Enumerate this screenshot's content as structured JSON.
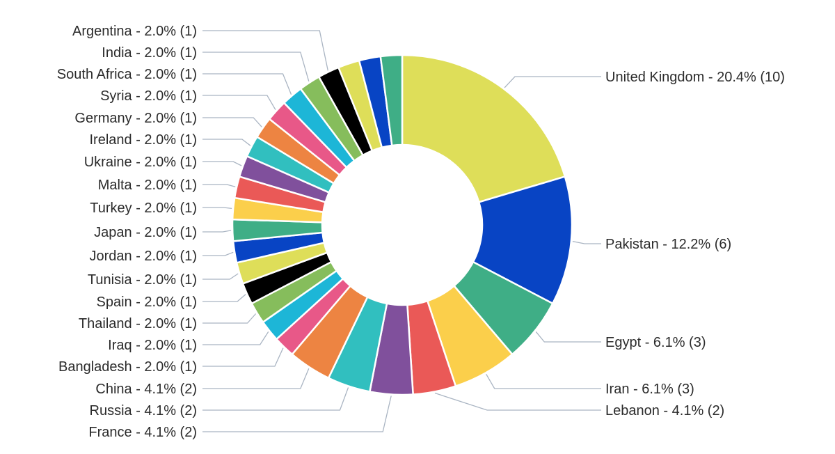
{
  "chart_data": {
    "type": "pie",
    "variant": "donut",
    "title": "",
    "slices": [
      {
        "label": "United Kingdom - 20.4% (10)",
        "name": "United Kingdom",
        "percent": 20.4,
        "count": 10,
        "color": "#dede59"
      },
      {
        "label": "Pakistan - 12.2% (6)",
        "name": "Pakistan",
        "percent": 12.2,
        "count": 6,
        "color": "#0844c4"
      },
      {
        "label": "Egypt - 6.1% (3)",
        "name": "Egypt",
        "percent": 6.1,
        "count": 3,
        "color": "#3fae86"
      },
      {
        "label": "Iran - 6.1% (3)",
        "name": "Iran",
        "percent": 6.1,
        "count": 3,
        "color": "#fbcf4b"
      },
      {
        "label": "Lebanon - 4.1% (2)",
        "name": "Lebanon",
        "percent": 4.1,
        "count": 2,
        "color": "#ea5957"
      },
      {
        "label": "France - 4.1% (2)",
        "name": "France",
        "percent": 4.1,
        "count": 2,
        "color": "#80509c"
      },
      {
        "label": "Russia - 4.1% (2)",
        "name": "Russia",
        "percent": 4.1,
        "count": 2,
        "color": "#31bfbf"
      },
      {
        "label": "China - 4.1% (2)",
        "name": "China",
        "percent": 4.1,
        "count": 2,
        "color": "#ed8442"
      },
      {
        "label": "Bangladesh - 2.0% (1)",
        "name": "Bangladesh",
        "percent": 2.0,
        "count": 1,
        "color": "#e85888"
      },
      {
        "label": "Iraq - 2.0% (1)",
        "name": "Iraq",
        "percent": 2.0,
        "count": 1,
        "color": "#1db6d7"
      },
      {
        "label": "Thailand - 2.0% (1)",
        "name": "Thailand",
        "percent": 2.0,
        "count": 1,
        "color": "#86bd5c"
      },
      {
        "label": "Spain - 2.0% (1)",
        "name": "Spain",
        "percent": 2.0,
        "count": 1,
        "color": "#000000"
      },
      {
        "label": "Tunisia - 2.0% (1)",
        "name": "Tunisia",
        "percent": 2.0,
        "count": 1,
        "color": "#dede59"
      },
      {
        "label": "Jordan - 2.0% (1)",
        "name": "Jordan",
        "percent": 2.0,
        "count": 1,
        "color": "#0844c4"
      },
      {
        "label": "Japan - 2.0% (1)",
        "name": "Japan",
        "percent": 2.0,
        "count": 1,
        "color": "#3fae86"
      },
      {
        "label": "Turkey - 2.0% (1)",
        "name": "Turkey",
        "percent": 2.0,
        "count": 1,
        "color": "#fbcf4b"
      },
      {
        "label": "Malta - 2.0% (1)",
        "name": "Malta",
        "percent": 2.0,
        "count": 1,
        "color": "#ea5957"
      },
      {
        "label": "Ukraine - 2.0% (1)",
        "name": "Ukraine",
        "percent": 2.0,
        "count": 1,
        "color": "#80509c"
      },
      {
        "label": "Ireland - 2.0% (1)",
        "name": "Ireland",
        "percent": 2.0,
        "count": 1,
        "color": "#31bfbf"
      },
      {
        "label": "Germany - 2.0% (1)",
        "name": "Germany",
        "percent": 2.0,
        "count": 1,
        "color": "#ed8442"
      },
      {
        "label": "Syria - 2.0% (1)",
        "name": "Syria",
        "percent": 2.0,
        "count": 1,
        "color": "#e85888"
      },
      {
        "label": "South Africa - 2.0% (1)",
        "name": "South Africa",
        "percent": 2.0,
        "count": 1,
        "color": "#1db6d7"
      },
      {
        "label": "India - 2.0% (1)",
        "name": "India",
        "percent": 2.0,
        "count": 1,
        "color": "#86bd5c"
      },
      {
        "label": "Argentina - 2.0% (1)",
        "name": "Argentina",
        "percent": 2.0,
        "count": 1,
        "color": "#000000"
      },
      {
        "label": "",
        "name": "",
        "percent": 2.0,
        "count": 1,
        "color": "#dede59"
      },
      {
        "label": "",
        "name": "",
        "percent": 2.0,
        "count": 1,
        "color": "#0844c4"
      },
      {
        "label": "",
        "name": "",
        "percent": 2.0,
        "count": 1,
        "color": "#3fae86"
      }
    ],
    "legend": "none",
    "label_style": "outside-leader-lines"
  }
}
